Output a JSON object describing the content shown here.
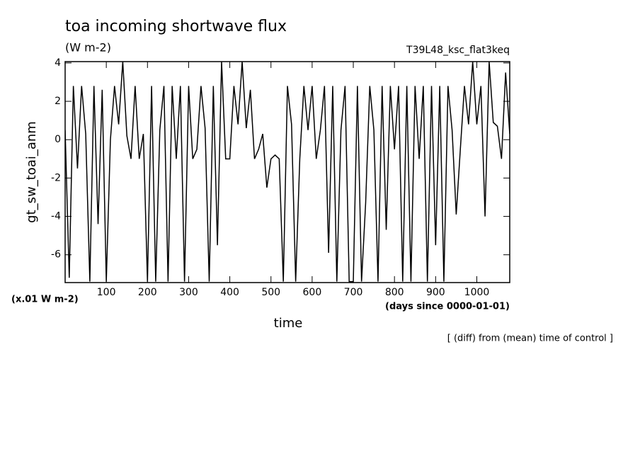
{
  "chart_data": {
    "type": "line",
    "title": "toa incoming shortwave flux",
    "subtitle": "(W m-2)",
    "run_label": "T39L48_ksc_flat3keq",
    "y_label": "gt_sw_toai_anm",
    "y_unit": "(x.01 W m-2)",
    "x_label": "time",
    "x_unit": "(days since 0000-01-01)",
    "footnote": "[ (diff) from (mean) time of control ]",
    "xlim": [
      0,
      1080
    ],
    "xticks": [
      100,
      200,
      300,
      400,
      500,
      600,
      700,
      800,
      900,
      1000
    ],
    "ylim": [
      -7.45,
      4.07
    ],
    "yticks": [
      -6,
      -4,
      -2,
      0,
      2,
      4
    ],
    "color": "#000000",
    "x": [
      0,
      10,
      20,
      30,
      40,
      50,
      60,
      70,
      80,
      90,
      100,
      110,
      120,
      130,
      140,
      150,
      160,
      170,
      180,
      190,
      200,
      210,
      220,
      230,
      240,
      250,
      260,
      270,
      280,
      290,
      300,
      310,
      320,
      330,
      340,
      350,
      360,
      370,
      380,
      390,
      400,
      410,
      420,
      430,
      440,
      450,
      460,
      470,
      480,
      490,
      500,
      510,
      520,
      530,
      540,
      550,
      560,
      570,
      580,
      590,
      600,
      610,
      620,
      630,
      640,
      650,
      660,
      670,
      680,
      690,
      700,
      710,
      720,
      730,
      740,
      750,
      760,
      770,
      780,
      790,
      800,
      810,
      820,
      830,
      840,
      850,
      860,
      870,
      880,
      890,
      900,
      910,
      920,
      930,
      940,
      950,
      960,
      970,
      980,
      990,
      1000,
      1010,
      1020,
      1030,
      1040,
      1050,
      1060,
      1070,
      1080
    ],
    "values": [
      0.5,
      -7.2,
      2.8,
      -1.5,
      2.8,
      0.3,
      -7.4,
      2.8,
      -4.4,
      2.6,
      -7.4,
      0,
      2.8,
      0.8,
      4.07,
      0.2,
      -1,
      2.8,
      -1,
      0.3,
      -7.4,
      2.8,
      -7.4,
      0.5,
      2.8,
      -7.4,
      2.8,
      -1,
      2.8,
      -7.4,
      2.8,
      -1,
      -0.5,
      2.8,
      0.6,
      -7.4,
      2.8,
      -5.5,
      4.07,
      -1,
      -1,
      2.8,
      0.8,
      4.07,
      0.6,
      2.6,
      -1,
      -0.5,
      0.3,
      -2.5,
      -1,
      -0.8,
      -1,
      -7.4,
      2.8,
      0.8,
      -7.4,
      -1,
      2.8,
      0.5,
      2.8,
      -1,
      0.5,
      2.8,
      -5.9,
      2.8,
      -7.4,
      0.5,
      2.8,
      -7.4,
      -7.4,
      2.8,
      -7.4,
      -3.3,
      2.8,
      0.5,
      -7.4,
      2.8,
      -4.7,
      2.8,
      -0.5,
      2.8,
      -7.4,
      2.8,
      -7.4,
      2.8,
      -1,
      2.8,
      -7.4,
      2.8,
      -5.5,
      2.8,
      -7.4,
      2.8,
      0.5,
      -3.9,
      -0.5,
      2.8,
      0.8,
      4.07,
      0.8,
      2.8,
      -4,
      4.07,
      0.9,
      0.7,
      -1,
      3.5,
      0.3
    ]
  }
}
